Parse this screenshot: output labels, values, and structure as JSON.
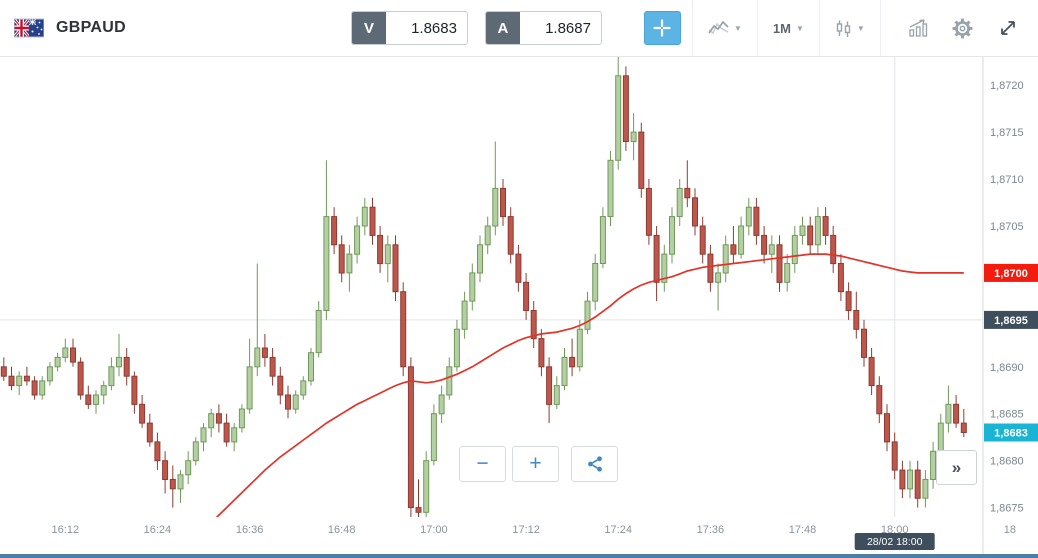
{
  "header": {
    "symbol": "GBPAUD",
    "sell": {
      "label": "V",
      "value": "1.8683"
    },
    "buy": {
      "label": "A",
      "value": "1.8687"
    },
    "timeframe_label": "1M"
  },
  "controls": {
    "zoom_out_label": "−",
    "zoom_in_label": "+",
    "expand_label": "»"
  },
  "axis": {
    "price_labels": [
      {
        "text": "1,8720",
        "price": 1.872
      },
      {
        "text": "1,8715",
        "price": 1.8715
      },
      {
        "text": "1,8710",
        "price": 1.871
      },
      {
        "text": "1,8705",
        "price": 1.8705
      },
      {
        "text": "1,8690",
        "price": 1.869
      },
      {
        "text": "1,8685",
        "price": 1.8685
      },
      {
        "text": "1,8680",
        "price": 1.868
      },
      {
        "text": "1,8675",
        "price": 1.8675
      }
    ],
    "price_badges": [
      {
        "text": "1,8700",
        "price": 1.87,
        "bg": "#f21b0e",
        "name": "ma-price-badge"
      },
      {
        "text": "1,8695",
        "price": 1.8695,
        "bg": "#3e4e5c",
        "name": "level-price-badge"
      },
      {
        "text": "1,8683",
        "price": 1.8683,
        "bg": "#1ab5d5",
        "name": "last-price-badge"
      }
    ],
    "time_labels": [
      {
        "text": "16:12",
        "slot": 8
      },
      {
        "text": "16:24",
        "slot": 20
      },
      {
        "text": "16:36",
        "slot": 32
      },
      {
        "text": "16:48",
        "slot": 44
      },
      {
        "text": "17:00",
        "slot": 56
      },
      {
        "text": "17:12",
        "slot": 68
      },
      {
        "text": "17:24",
        "slot": 80
      },
      {
        "text": "17:36",
        "slot": 92
      },
      {
        "text": "17:48",
        "slot": 104
      },
      {
        "text": "18:00",
        "slot": 116
      },
      {
        "text": "18",
        "slot": 131
      }
    ],
    "day_marker": {
      "text": "28/02 18:00",
      "slot": 116
    }
  },
  "chart_data": {
    "type": "candlestick",
    "title": "GBPAUD 1-minute candlestick chart with red moving average",
    "symbol": "GBPAUD",
    "interval": "1M",
    "start_time": "16:04",
    "interval_minutes": 1,
    "visible_slots": 128,
    "ylim": [
      1.8674,
      1.8723
    ],
    "grid_h_line_price": 1.8695,
    "last_price": 1.8683,
    "colors": {
      "up_fill": "#b4cfa4",
      "up_border": "#6f9a58",
      "down_fill": "#bd574c",
      "down_border": "#8e3b33",
      "ma": "#e23328"
    },
    "candles": [
      [
        1.869,
        1.8691,
        1.86885,
        1.8689
      ],
      [
        1.8689,
        1.869,
        1.86875,
        1.8688
      ],
      [
        1.8688,
        1.86895,
        1.8687,
        1.8689
      ],
      [
        1.8689,
        1.869,
        1.8688,
        1.86885
      ],
      [
        1.86885,
        1.8689,
        1.86865,
        1.8687
      ],
      [
        1.8687,
        1.8689,
        1.86865,
        1.86885
      ],
      [
        1.86885,
        1.86905,
        1.8688,
        1.869
      ],
      [
        1.869,
        1.86915,
        1.86895,
        1.8691
      ],
      [
        1.8691,
        1.8693,
        1.86905,
        1.8692
      ],
      [
        1.8692,
        1.8693,
        1.869,
        1.86905
      ],
      [
        1.86905,
        1.8691,
        1.86865,
        1.8687
      ],
      [
        1.8687,
        1.8688,
        1.86855,
        1.8686
      ],
      [
        1.8686,
        1.86875,
        1.8685,
        1.8687
      ],
      [
        1.8687,
        1.86885,
        1.8686,
        1.8688
      ],
      [
        1.8688,
        1.8691,
        1.86875,
        1.869
      ],
      [
        1.869,
        1.86935,
        1.8689,
        1.8691
      ],
      [
        1.8691,
        1.8692,
        1.8688,
        1.8689
      ],
      [
        1.8689,
        1.86895,
        1.8685,
        1.8686
      ],
      [
        1.8686,
        1.8687,
        1.86835,
        1.8684
      ],
      [
        1.8684,
        1.8685,
        1.86815,
        1.8682
      ],
      [
        1.8682,
        1.8683,
        1.8679,
        1.868
      ],
      [
        1.868,
        1.8681,
        1.86765,
        1.8678
      ],
      [
        1.8678,
        1.86795,
        1.8675,
        1.8677
      ],
      [
        1.8677,
        1.8679,
        1.86755,
        1.86785
      ],
      [
        1.86785,
        1.8681,
        1.86775,
        1.868
      ],
      [
        1.868,
        1.86825,
        1.86795,
        1.8682
      ],
      [
        1.8682,
        1.8684,
        1.8681,
        1.86835
      ],
      [
        1.86835,
        1.86855,
        1.86825,
        1.8685
      ],
      [
        1.8685,
        1.8686,
        1.8683,
        1.8684
      ],
      [
        1.8684,
        1.8685,
        1.86815,
        1.8682
      ],
      [
        1.8682,
        1.8684,
        1.8681,
        1.86835
      ],
      [
        1.86835,
        1.8686,
        1.8683,
        1.86855
      ],
      [
        1.86855,
        1.8693,
        1.8685,
        1.869
      ],
      [
        1.869,
        1.8701,
        1.8689,
        1.8692
      ],
      [
        1.8692,
        1.86935,
        1.869,
        1.8691
      ],
      [
        1.8691,
        1.8692,
        1.8688,
        1.8689
      ],
      [
        1.8689,
        1.869,
        1.8686,
        1.8687
      ],
      [
        1.8687,
        1.8688,
        1.86845,
        1.86855
      ],
      [
        1.86855,
        1.86875,
        1.8685,
        1.8687
      ],
      [
        1.8687,
        1.8689,
        1.86865,
        1.86885
      ],
      [
        1.86885,
        1.8692,
        1.8688,
        1.86915
      ],
      [
        1.86915,
        1.8697,
        1.8691,
        1.8696
      ],
      [
        1.8696,
        1.8712,
        1.8695,
        1.8706
      ],
      [
        1.8706,
        1.8707,
        1.8702,
        1.8703
      ],
      [
        1.8703,
        1.8704,
        1.8699,
        1.87
      ],
      [
        1.87,
        1.8703,
        1.8698,
        1.8702
      ],
      [
        1.8702,
        1.8706,
        1.8701,
        1.8705
      ],
      [
        1.8705,
        1.8708,
        1.8704,
        1.8707
      ],
      [
        1.8707,
        1.8708,
        1.8703,
        1.8704
      ],
      [
        1.8704,
        1.8705,
        1.87,
        1.8701
      ],
      [
        1.8701,
        1.8704,
        1.8699,
        1.8703
      ],
      [
        1.8703,
        1.8704,
        1.8697,
        1.8698
      ],
      [
        1.8698,
        1.8699,
        1.8689,
        1.869
      ],
      [
        1.869,
        1.8691,
        1.8674,
        1.8675
      ],
      [
        1.8675,
        1.8678,
        1.86735,
        1.86745
      ],
      [
        1.86745,
        1.8681,
        1.8674,
        1.868
      ],
      [
        1.868,
        1.8686,
        1.86795,
        1.8685
      ],
      [
        1.8685,
        1.8688,
        1.8684,
        1.8687
      ],
      [
        1.8687,
        1.8691,
        1.86865,
        1.869
      ],
      [
        1.869,
        1.8695,
        1.86895,
        1.8694
      ],
      [
        1.8694,
        1.8698,
        1.8693,
        1.8697
      ],
      [
        1.8697,
        1.8701,
        1.8696,
        1.87
      ],
      [
        1.87,
        1.8704,
        1.8699,
        1.8703
      ],
      [
        1.8703,
        1.8706,
        1.8702,
        1.8705
      ],
      [
        1.8705,
        1.8714,
        1.8704,
        1.8709
      ],
      [
        1.8709,
        1.871,
        1.8705,
        1.8706
      ],
      [
        1.8706,
        1.8707,
        1.8701,
        1.8702
      ],
      [
        1.8702,
        1.8703,
        1.8698,
        1.8699
      ],
      [
        1.8699,
        1.87,
        1.8695,
        1.8696
      ],
      [
        1.8696,
        1.8697,
        1.8692,
        1.8693
      ],
      [
        1.8693,
        1.8694,
        1.8689,
        1.869
      ],
      [
        1.869,
        1.8691,
        1.8684,
        1.8686
      ],
      [
        1.8686,
        1.8689,
        1.86855,
        1.8688
      ],
      [
        1.8688,
        1.8692,
        1.86875,
        1.8691
      ],
      [
        1.8691,
        1.8693,
        1.8689,
        1.869
      ],
      [
        1.869,
        1.8695,
        1.86895,
        1.8694
      ],
      [
        1.8694,
        1.8698,
        1.86935,
        1.8697
      ],
      [
        1.8697,
        1.8702,
        1.8696,
        1.8701
      ],
      [
        1.8701,
        1.8707,
        1.87005,
        1.8706
      ],
      [
        1.8706,
        1.8713,
        1.8705,
        1.8712
      ],
      [
        1.8712,
        1.8723,
        1.8711,
        1.8721
      ],
      [
        1.8721,
        1.8722,
        1.8713,
        1.8714
      ],
      [
        1.8714,
        1.8717,
        1.8712,
        1.8715
      ],
      [
        1.8715,
        1.8716,
        1.8708,
        1.8709
      ],
      [
        1.8709,
        1.871,
        1.8703,
        1.8704
      ],
      [
        1.8704,
        1.8705,
        1.8697,
        1.8699
      ],
      [
        1.8699,
        1.8703,
        1.8698,
        1.8702
      ],
      [
        1.8702,
        1.8707,
        1.8701,
        1.8706
      ],
      [
        1.8706,
        1.871,
        1.8705,
        1.8709
      ],
      [
        1.8709,
        1.8712,
        1.8707,
        1.8708
      ],
      [
        1.8708,
        1.8709,
        1.8704,
        1.8705
      ],
      [
        1.8705,
        1.8706,
        1.8701,
        1.8702
      ],
      [
        1.8702,
        1.8703,
        1.8698,
        1.8699
      ],
      [
        1.8699,
        1.8701,
        1.8696,
        1.87
      ],
      [
        1.87,
        1.8704,
        1.8699,
        1.8703
      ],
      [
        1.8703,
        1.8705,
        1.8701,
        1.8702
      ],
      [
        1.8702,
        1.8706,
        1.87015,
        1.8705
      ],
      [
        1.8705,
        1.8708,
        1.8704,
        1.8707
      ],
      [
        1.8707,
        1.8708,
        1.8703,
        1.8704
      ],
      [
        1.8704,
        1.8705,
        1.8701,
        1.8702
      ],
      [
        1.8702,
        1.8704,
        1.87,
        1.8703
      ],
      [
        1.8703,
        1.8704,
        1.8698,
        1.8699
      ],
      [
        1.8699,
        1.8702,
        1.8698,
        1.8701
      ],
      [
        1.8701,
        1.8705,
        1.87,
        1.8704
      ],
      [
        1.8704,
        1.8706,
        1.8703,
        1.8705
      ],
      [
        1.8705,
        1.8706,
        1.8702,
        1.8703
      ],
      [
        1.8703,
        1.8707,
        1.8702,
        1.8706
      ],
      [
        1.8706,
        1.8707,
        1.8703,
        1.8704
      ],
      [
        1.8704,
        1.8705,
        1.87,
        1.8701
      ],
      [
        1.8701,
        1.8702,
        1.8697,
        1.8698
      ],
      [
        1.8698,
        1.8699,
        1.8695,
        1.8696
      ],
      [
        1.8696,
        1.8698,
        1.8693,
        1.8694
      ],
      [
        1.8694,
        1.8695,
        1.869,
        1.8691
      ],
      [
        1.8691,
        1.8692,
        1.8687,
        1.8688
      ],
      [
        1.8688,
        1.8689,
        1.8684,
        1.8685
      ],
      [
        1.8685,
        1.8686,
        1.8681,
        1.8682
      ],
      [
        1.8682,
        1.8683,
        1.8678,
        1.8679
      ],
      [
        1.8679,
        1.868,
        1.8676,
        1.8677
      ],
      [
        1.8677,
        1.868,
        1.8676,
        1.8679
      ],
      [
        1.8679,
        1.868,
        1.8675,
        1.8676
      ],
      [
        1.8676,
        1.8679,
        1.8675,
        1.8678
      ],
      [
        1.8678,
        1.8682,
        1.8677,
        1.8681
      ],
      [
        1.8681,
        1.8685,
        1.86805,
        1.8684
      ],
      [
        1.8684,
        1.8688,
        1.8683,
        1.8686
      ],
      [
        1.8686,
        1.8687,
        1.86835,
        1.8684
      ],
      [
        1.8684,
        1.86855,
        1.86825,
        1.8683
      ]
    ],
    "ma": {
      "name": "moving-average",
      "values": [
        null,
        null,
        null,
        null,
        null,
        null,
        null,
        null,
        null,
        null,
        null,
        null,
        null,
        null,
        null,
        null,
        null,
        null,
        null,
        null,
        null,
        null,
        null,
        null,
        1.8671,
        1.86718,
        1.86726,
        1.86734,
        1.86742,
        1.8675,
        1.86758,
        1.86766,
        1.86774,
        1.86782,
        1.8679,
        1.86797,
        1.86804,
        1.8681,
        1.86816,
        1.86822,
        1.86828,
        1.86834,
        1.8684,
        1.86845,
        1.8685,
        1.86855,
        1.8686,
        1.86864,
        1.86868,
        1.86872,
        1.86876,
        1.8688,
        1.86883,
        1.86885,
        1.86884,
        1.86883,
        1.86884,
        1.86886,
        1.86889,
        1.86892,
        1.86896,
        1.869,
        1.86905,
        1.8691,
        1.86915,
        1.8692,
        1.86924,
        1.86928,
        1.86931,
        1.86933,
        1.86935,
        1.86936,
        1.86937,
        1.86939,
        1.86941,
        1.86944,
        1.86948,
        1.86953,
        1.86959,
        1.86965,
        1.86972,
        1.86978,
        1.86983,
        1.86987,
        1.8699,
        1.86992,
        1.86994,
        1.86996,
        1.86999,
        1.87002,
        1.87004,
        1.87006,
        1.87007,
        1.87008,
        1.87009,
        1.8701,
        1.87011,
        1.87012,
        1.87013,
        1.87014,
        1.87015,
        1.87016,
        1.87017,
        1.87018,
        1.87019,
        1.8702,
        1.8702,
        1.8702,
        1.87019,
        1.87018,
        1.87016,
        1.87014,
        1.87012,
        1.8701,
        1.87008,
        1.87006,
        1.87004,
        1.87002,
        1.87001,
        1.87,
        1.87,
        1.87,
        1.87,
        1.87,
        1.87,
        1.87
      ]
    }
  }
}
